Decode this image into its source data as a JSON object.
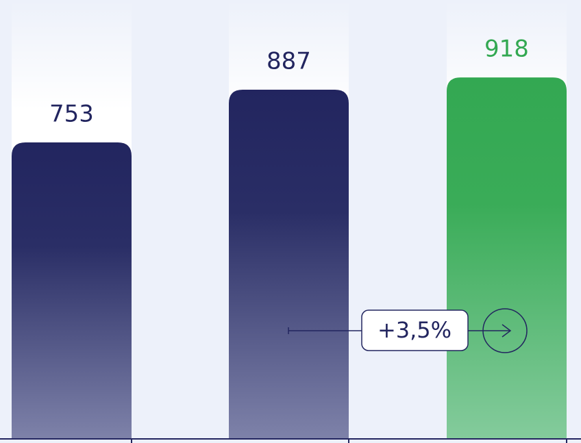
{
  "chart_data": {
    "type": "bar",
    "categories": [
      null,
      null,
      null
    ],
    "values": [
      753,
      887,
      918
    ],
    "colors": [
      "#22255f",
      "#22255f",
      "#33a852"
    ],
    "annotation": "+3,5%"
  }
}
